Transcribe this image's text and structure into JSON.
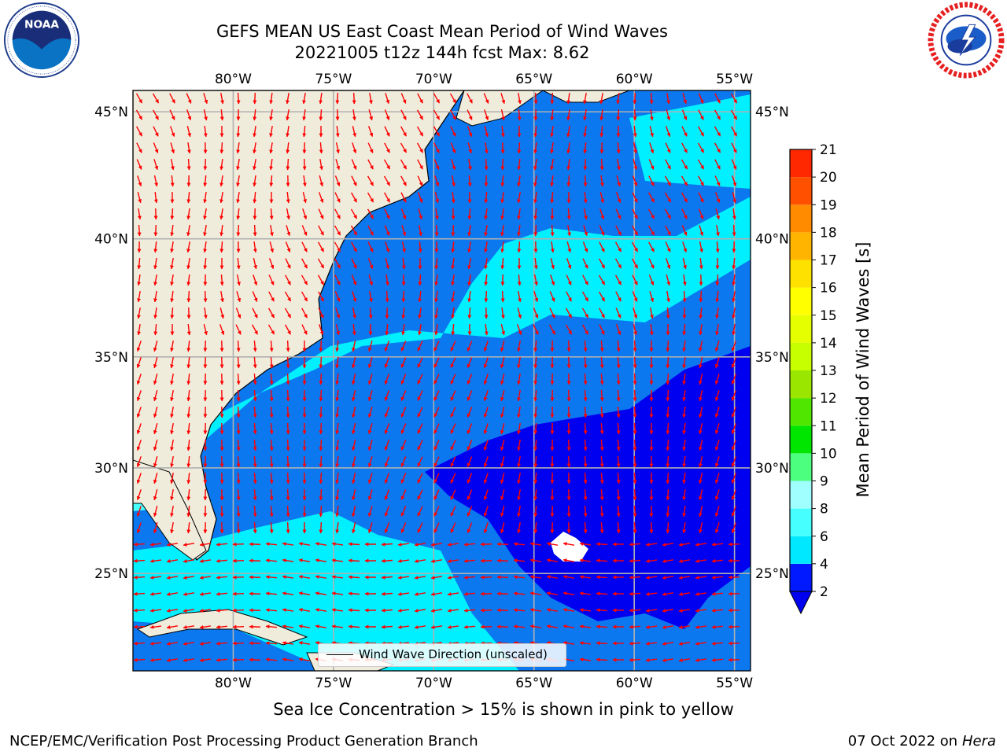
{
  "header": {
    "title_line1": "GEFS MEAN US East Coast Mean Period of Wind Waves",
    "title_line2": "20221005 t12z 144h fcst   Max: 8.62"
  },
  "logos": {
    "left": {
      "icon": "noaa-logo",
      "text": "NOAA"
    },
    "right": {
      "icon": "national-weather-service-logo"
    }
  },
  "map": {
    "lon_labels": [
      "80°W",
      "75°W",
      "70°W",
      "65°W",
      "60°W",
      "55°W"
    ],
    "lat_labels": [
      "45°N",
      "40°N",
      "35°N",
      "30°N",
      "25°N"
    ],
    "lon_values": [
      -80,
      -75,
      -70,
      -65,
      -60,
      -55
    ],
    "lat_values": [
      45,
      40,
      35,
      30,
      25
    ],
    "extent": {
      "lon": [
        -85,
        -54.2
      ],
      "lat": [
        20.2,
        45.8
      ]
    },
    "legend_label": "Wind Wave Direction (unscaled)",
    "colors": {
      "land": "#efecdc",
      "grid": "#b0b0b0",
      "arrow": "#ff0000",
      "missing": "#ffffff"
    }
  },
  "colorbar": {
    "label": "Mean Period of Wind Waves [s]",
    "ticks": [
      "2",
      "4",
      "6",
      "8",
      "9",
      "10",
      "11",
      "12",
      "13",
      "14",
      "15",
      "16",
      "17",
      "18",
      "19",
      "20",
      "21"
    ],
    "colors": [
      "#0019ff",
      "#00e8ff",
      "#46ffff",
      "#a0ffff",
      "#4dff7f",
      "#00e600",
      "#50e600",
      "#9ae600",
      "#c8ff00",
      "#e6ff00",
      "#ffff00",
      "#ffe100",
      "#ffb400",
      "#ff8c00",
      "#ff5000",
      "#ff2800",
      "#ff0000"
    ],
    "under_color": "#0000f0"
  },
  "footer": {
    "sea_ice_note": "Sea Ice Concentration > 15% is shown in pink to yellow",
    "left": "NCEP/EMC/Verification Post Processing Product Generation Branch",
    "right_date": "07 Oct 2022 on ",
    "right_machine": "Hera"
  }
}
